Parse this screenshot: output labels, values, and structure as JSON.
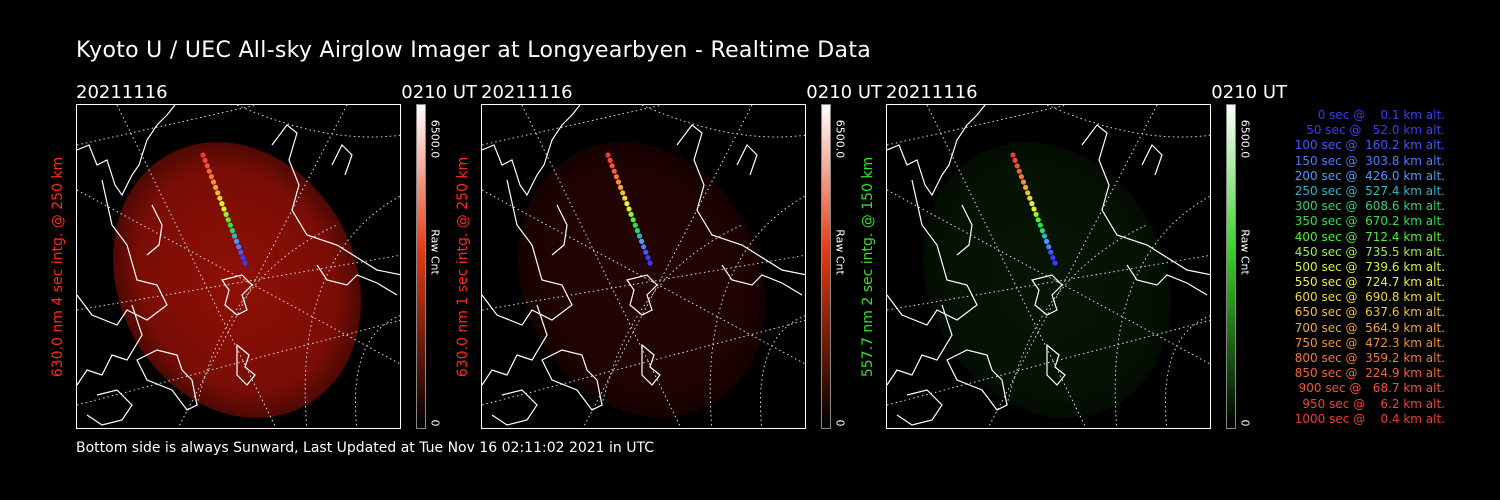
{
  "header": {
    "title": "Kyoto U / UEC All-sky Airglow Imager at Longyearbyen - Realtime Data"
  },
  "footer": {
    "text": "Bottom side is always Sunward, Last Updated at Tue Nov 16 02:11:02 2021 in UTC"
  },
  "panels": [
    {
      "date": "20211116",
      "time": "0210 UT",
      "side_label": "630.0 nm 4 sec intg. @ 250 km",
      "label_color": "#ff2a1a",
      "cbar_max": "6500.0",
      "cbar_unit": "Raw Cnt",
      "cbar_min": "0",
      "colormap": "red",
      "intensity": 0.62
    },
    {
      "date": "20211116",
      "time": "0210 UT",
      "side_label": "630.0 nm 1 sec intg. @ 250 km",
      "label_color": "#ff2a1a",
      "cbar_max": "6500.0",
      "cbar_unit": "Raw Cnt",
      "cbar_min": "0",
      "colormap": "red",
      "intensity": 0.16
    },
    {
      "date": "20211116",
      "time": "0210 UT",
      "side_label": "557.7 nm 2 sec intg. @ 150 km",
      "label_color": "#35e02a",
      "cbar_max": "6500.0",
      "cbar_unit": "Raw Cnt",
      "cbar_min": "0",
      "colormap": "green",
      "intensity": 0.14
    }
  ],
  "trajectory_legend": [
    {
      "text": "0 sec @    0.1 km alt.",
      "color": "#3b3bff"
    },
    {
      "text": "50 sec @   52.0 km alt.",
      "color": "#3b3bff"
    },
    {
      "text": "100 sec @  160.2 km alt.",
      "color": "#3f5cff"
    },
    {
      "text": "150 sec @  303.8 km alt.",
      "color": "#4f7dff"
    },
    {
      "text": "200 sec @  426.0 km alt.",
      "color": "#4f9aff"
    },
    {
      "text": "250 sec @  527.4 km alt.",
      "color": "#33b5c8"
    },
    {
      "text": "300 sec @  608.6 km alt.",
      "color": "#33d07a"
    },
    {
      "text": "350 sec @  670.2 km alt.",
      "color": "#33e04a"
    },
    {
      "text": "400 sec @  712.4 km alt.",
      "color": "#4ff03a"
    },
    {
      "text": "450 sec @  735.5 km alt.",
      "color": "#9af03a"
    },
    {
      "text": "500 sec @  739.6 km alt.",
      "color": "#d8f03a"
    },
    {
      "text": "550 sec @  724.7 km alt.",
      "color": "#f0f03a"
    },
    {
      "text": "600 sec @  690.8 km alt.",
      "color": "#f0d83a"
    },
    {
      "text": "650 sec @  637.6 km alt.",
      "color": "#f0c03a"
    },
    {
      "text": "700 sec @  564.9 km alt.",
      "color": "#f0a83a"
    },
    {
      "text": "750 sec @  472.3 km alt.",
      "color": "#f0903a"
    },
    {
      "text": "800 sec @  359.2 km alt.",
      "color": "#f07a3a"
    },
    {
      "text": "850 sec @  224.9 km alt.",
      "color": "#f0663a"
    },
    {
      "text": "900 sec @   68.7 km alt.",
      "color": "#f0553a"
    },
    {
      "text": "950 sec @    6.2 km alt.",
      "color": "#f0453a"
    },
    {
      "text": "1000 sec @    0.4 km alt.",
      "color": "#f03a3a"
    }
  ]
}
